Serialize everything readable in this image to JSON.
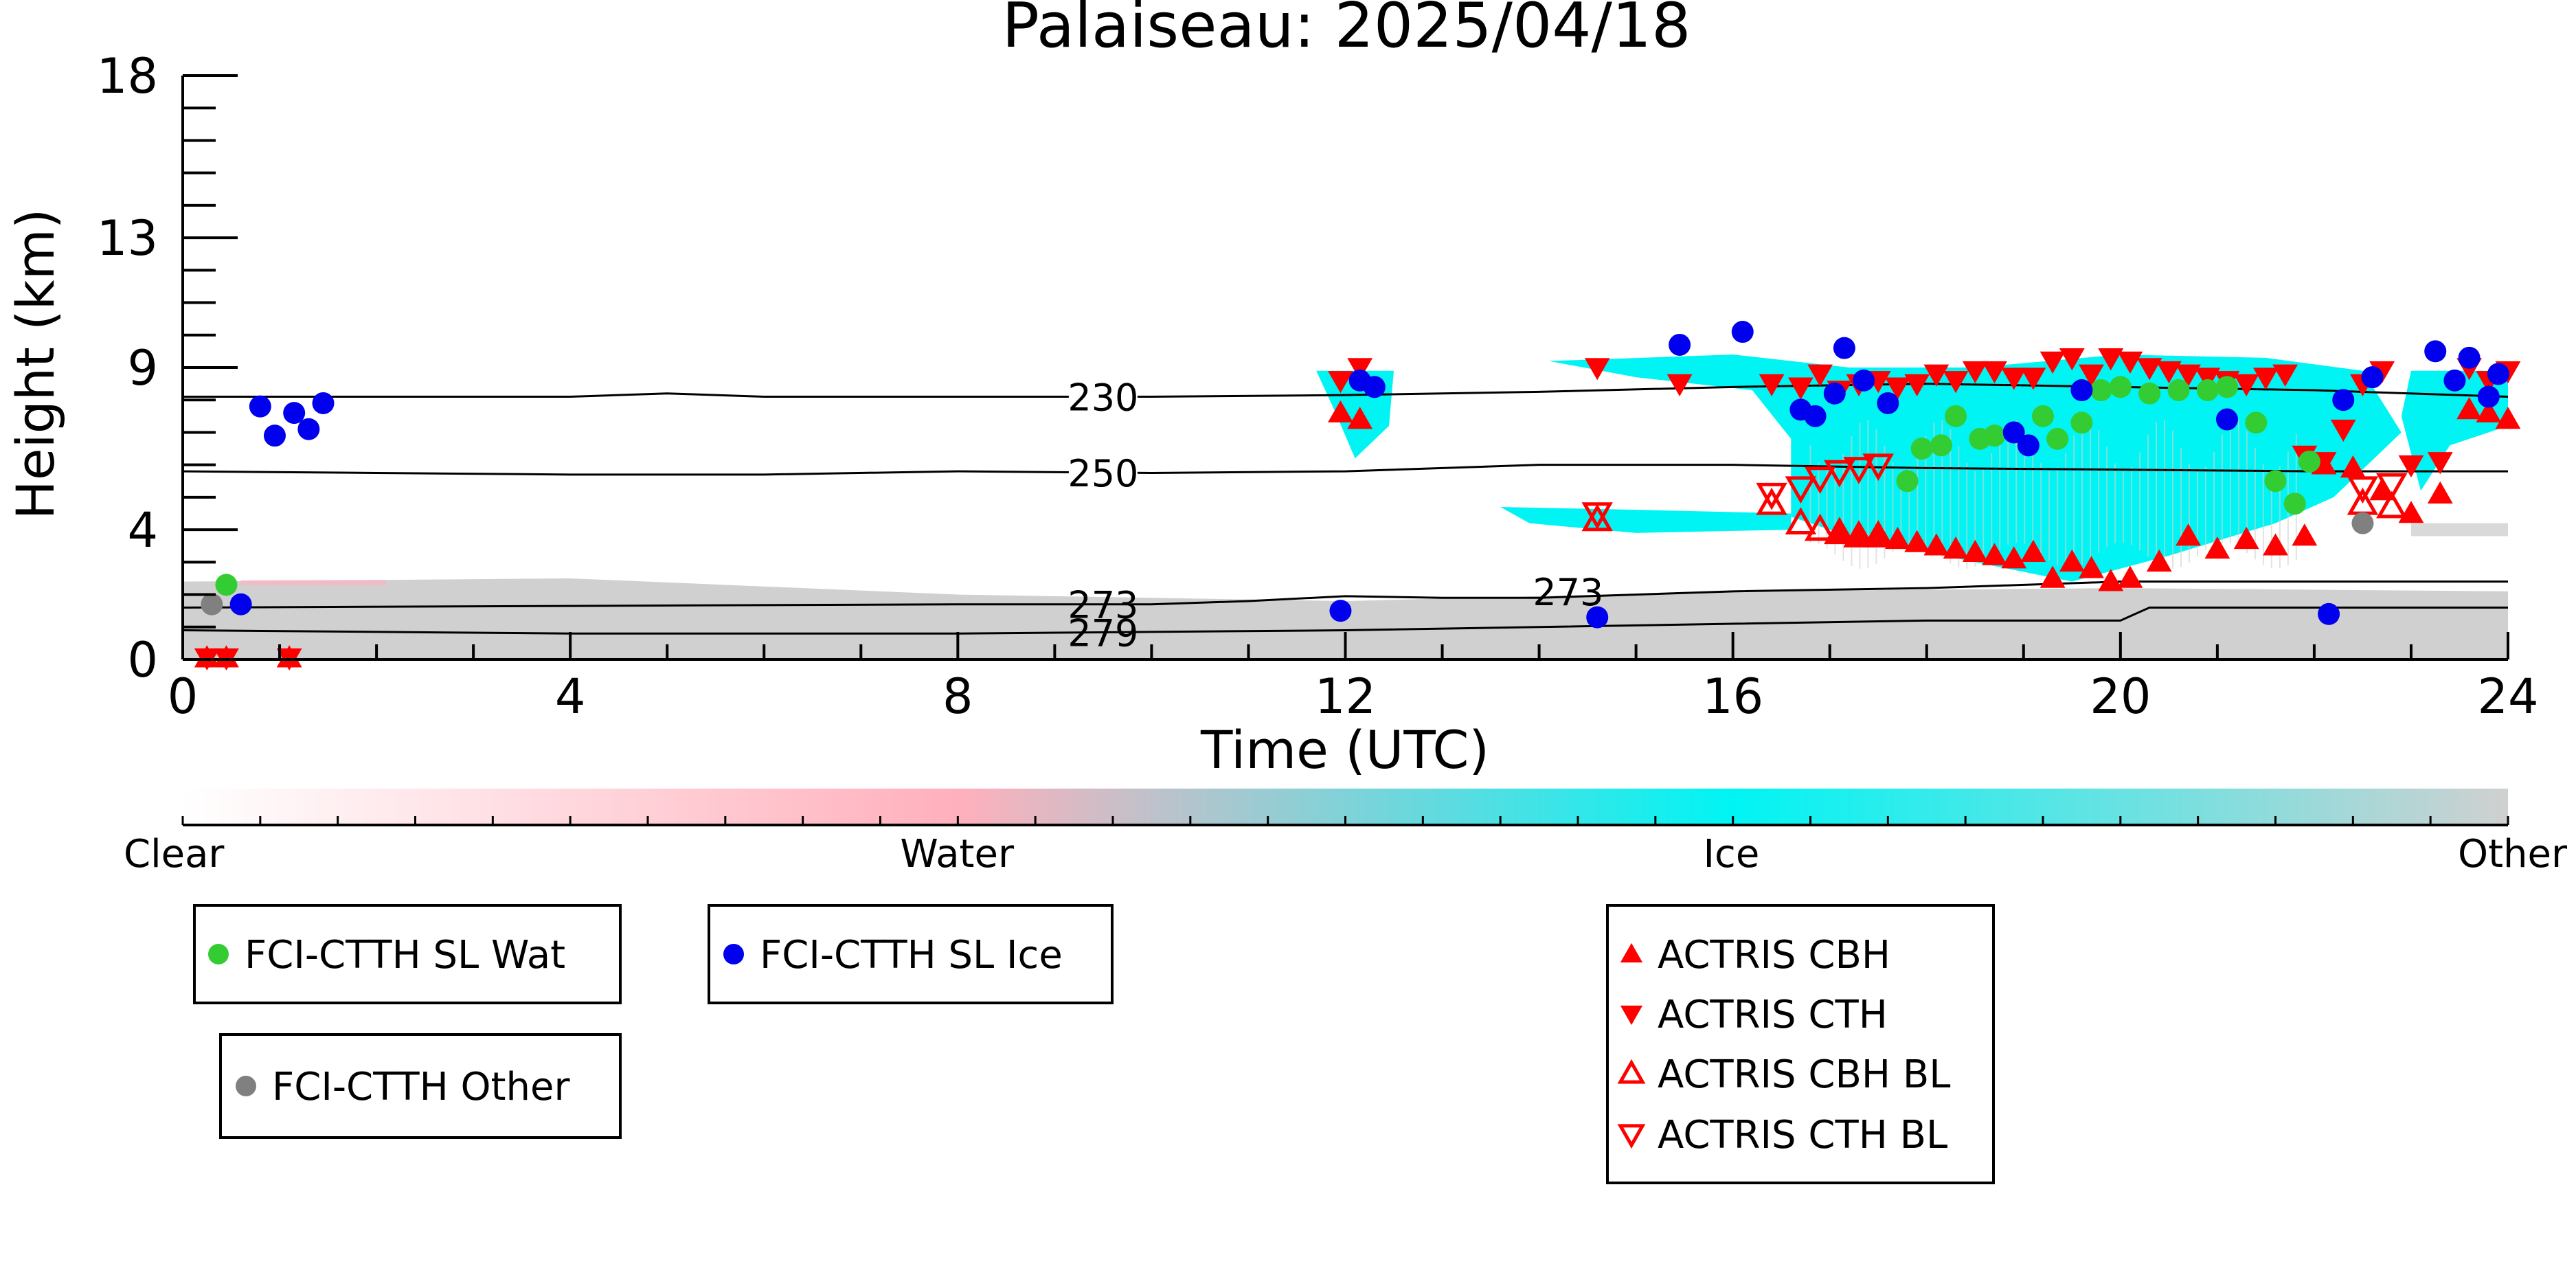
{
  "chart_data": {
    "type": "scatter",
    "title": "Palaiseau: 2025/04/18",
    "xlabel": "Time (UTC)",
    "ylabel": "Height (km)",
    "xlim": [
      0,
      24
    ],
    "ylim": [
      0,
      18
    ],
    "x_ticks": [
      0,
      4,
      8,
      12,
      16,
      20,
      24
    ],
    "y_ticks": [
      0,
      4,
      9,
      13,
      18
    ],
    "y_tick_labels": [
      "0",
      "4",
      "9",
      "13",
      "18"
    ],
    "grid": false,
    "colorbar": {
      "labels": [
        "Clear",
        "Water",
        "Ice",
        "Other"
      ],
      "colors": [
        "#ffffff",
        "#ffb0bc",
        "#00f4f4",
        "#d0d0d0"
      ]
    },
    "contours": [
      {
        "label": "230",
        "x": [
          0,
          2,
          4,
          5,
          6,
          8,
          10,
          12,
          14,
          16,
          18,
          20,
          22,
          24
        ],
        "y": [
          8.1,
          8.1,
          8.1,
          8.2,
          8.1,
          8.1,
          8.1,
          8.15,
          8.25,
          8.4,
          8.5,
          8.4,
          8.3,
          8.1
        ]
      },
      {
        "label": "250",
        "x": [
          0,
          2,
          4,
          6,
          8,
          10,
          12,
          14,
          16,
          18,
          20,
          22,
          24
        ],
        "y": [
          5.8,
          5.75,
          5.7,
          5.7,
          5.8,
          5.75,
          5.8,
          6.0,
          6.0,
          5.9,
          5.85,
          5.8,
          5.8
        ]
      },
      {
        "label": "273",
        "x": [
          0,
          4,
          8,
          10,
          11,
          12,
          13,
          14,
          16,
          18,
          20,
          22,
          24
        ],
        "y": [
          1.6,
          1.65,
          1.7,
          1.7,
          1.8,
          1.95,
          1.9,
          1.9,
          2.1,
          2.2,
          2.4,
          2.4,
          2.4
        ]
      },
      {
        "label": "279",
        "x": [
          0,
          4,
          8,
          10,
          12,
          14,
          16,
          18,
          20,
          20.3,
          22,
          24
        ],
        "y": [
          0.9,
          0.8,
          0.8,
          0.85,
          0.9,
          1.0,
          1.1,
          1.2,
          1.2,
          1.6,
          1.6,
          1.6
        ]
      }
    ],
    "series": [
      {
        "name": "FCI-CTTH SL Wat",
        "color": "#33cc33",
        "marker": "circle",
        "x": [
          0.45,
          17.8,
          17.95,
          18.15,
          18.3,
          18.55,
          18.7,
          19.2,
          19.35,
          19.6,
          19.8,
          20.0,
          20.3,
          20.6,
          20.9,
          21.1,
          21.4,
          21.6,
          21.8,
          21.95
        ],
        "y": [
          2.3,
          5.5,
          6.5,
          6.6,
          7.5,
          6.8,
          6.9,
          7.5,
          6.8,
          7.3,
          8.3,
          8.4,
          8.2,
          8.3,
          8.3,
          8.4,
          7.3,
          5.5,
          4.8,
          6.1
        ]
      },
      {
        "name": "FCI-CTTH SL Ice",
        "color": "#0000ee",
        "marker": "circle",
        "x": [
          0.6,
          0.8,
          0.95,
          1.15,
          1.3,
          1.45,
          11.95,
          12.15,
          12.3,
          14.6,
          15.45,
          16.1,
          16.7,
          16.85,
          17.05,
          17.15,
          17.35,
          17.6,
          18.9,
          19.05,
          19.6,
          21.1,
          22.15,
          22.3,
          22.6,
          23.25,
          23.45,
          23.6,
          23.8,
          23.9
        ],
        "y": [
          1.7,
          7.8,
          6.9,
          7.6,
          7.1,
          7.9,
          1.5,
          8.6,
          8.4,
          1.3,
          9.7,
          10.1,
          7.7,
          7.5,
          8.2,
          9.6,
          8.6,
          7.9,
          7.0,
          6.6,
          8.3,
          7.4,
          1.4,
          8.0,
          8.7,
          9.5,
          8.6,
          9.3,
          8.1,
          8.8
        ],
        "points_x": [],
        "points_y": []
      },
      {
        "name": "FCI-CTTH Other",
        "color": "#808080",
        "marker": "circle",
        "x": [
          0.3,
          22.5
        ],
        "y": [
          1.7,
          4.2
        ]
      },
      {
        "name": "ACTRIS CBH",
        "color": "#ff0000",
        "marker": "triangle-up",
        "x": [
          0.25,
          0.45,
          1.1,
          11.95,
          12.15,
          17.1,
          17.3,
          17.5,
          17.7,
          17.9,
          18.1,
          18.3,
          18.5,
          18.7,
          18.9,
          19.1,
          19.3,
          19.5,
          19.7,
          19.9,
          20.1,
          20.4,
          20.7,
          21.0,
          21.3,
          21.6,
          21.9,
          22.1,
          22.4,
          22.7,
          23.0,
          23.3,
          23.6,
          23.8,
          24.0
        ],
        "y": [
          0.05,
          0.05,
          0.05,
          7.6,
          7.4,
          3.9,
          3.8,
          3.8,
          3.7,
          3.6,
          3.5,
          3.4,
          3.3,
          3.2,
          3.1,
          3.3,
          2.5,
          3.0,
          2.8,
          2.4,
          2.5,
          3.0,
          3.8,
          3.4,
          3.7,
          3.5,
          3.8,
          6.0,
          5.9,
          5.2,
          4.5,
          5.1,
          7.7,
          7.6,
          7.4
        ]
      },
      {
        "name": "ACTRIS CTH",
        "color": "#ff0000",
        "marker": "triangle-down",
        "x": [
          0.25,
          0.45,
          1.1,
          11.95,
          12.15,
          14.6,
          15.45,
          16.4,
          16.7,
          16.9,
          17.1,
          17.3,
          17.5,
          17.7,
          17.9,
          18.1,
          18.3,
          18.5,
          18.7,
          18.9,
          19.1,
          19.3,
          19.5,
          19.7,
          19.9,
          20.1,
          20.3,
          20.5,
          20.7,
          20.9,
          21.1,
          21.3,
          21.5,
          21.7,
          21.9,
          22.1,
          22.3,
          22.5,
          22.7,
          23.0,
          23.3,
          23.6,
          23.8,
          24.0
        ],
        "y": [
          0.05,
          0.05,
          0.05,
          8.6,
          9.0,
          9.0,
          8.5,
          8.5,
          8.4,
          8.8,
          8.3,
          8.5,
          8.6,
          8.4,
          8.5,
          8.8,
          8.6,
          8.9,
          8.9,
          8.7,
          8.7,
          9.2,
          9.3,
          8.8,
          9.3,
          9.2,
          9.0,
          8.9,
          8.8,
          8.7,
          8.6,
          8.5,
          8.7,
          8.8,
          6.3,
          6.1,
          7.1,
          8.5,
          8.9,
          6.0,
          6.1,
          9.0,
          8.6,
          8.9
        ]
      },
      {
        "name": "ACTRIS CBH BL",
        "color": "#ff0000",
        "marker": "triangle-up-open",
        "x": [
          14.6,
          16.4,
          16.7,
          16.9,
          17.1,
          17.3,
          17.5,
          22.5,
          22.8
        ],
        "y": [
          4.3,
          4.8,
          4.2,
          4.0,
          3.9,
          3.8,
          3.8,
          4.8,
          4.7
        ]
      },
      {
        "name": "ACTRIS CTH BL",
        "color": "#ff0000",
        "marker": "triangle-down-open",
        "x": [
          14.6,
          16.4,
          16.7,
          16.9,
          17.1,
          17.3,
          17.5,
          22.5,
          22.8
        ],
        "y": [
          4.5,
          5.1,
          5.3,
          5.6,
          5.8,
          5.9,
          6.0,
          5.3,
          5.4
        ]
      }
    ]
  }
}
